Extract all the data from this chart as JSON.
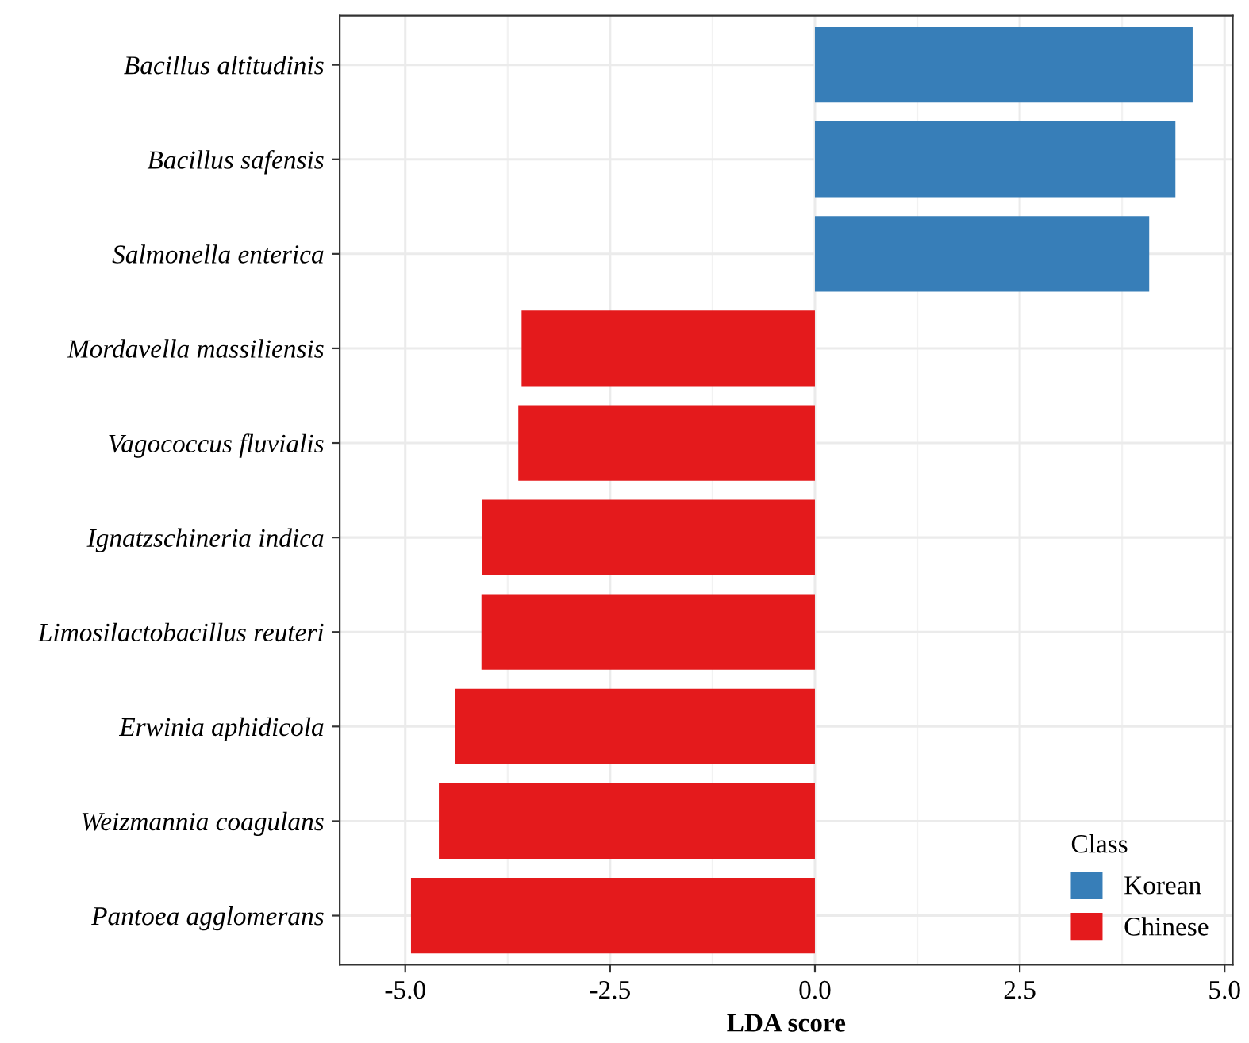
{
  "chart_data": {
    "type": "bar",
    "orientation": "horizontal",
    "xlabel": "LDA score",
    "legend_title": "Class",
    "categories": [
      "Bacillus altitudinis",
      "Bacillus safensis",
      "Salmonella enterica",
      "Mordavella massiliensis",
      "Vagococcus fluvialis",
      "Ignatzschineria indica",
      "Limosilactobacillus reuteri",
      "Erwinia aphidicola",
      "Weizmannia coagulans",
      "Pantoea agglomerans"
    ],
    "series": [
      {
        "name": "Korean",
        "color": "#377eb8",
        "values": [
          4.61,
          4.4,
          4.08,
          null,
          null,
          null,
          null,
          null,
          null,
          null
        ]
      },
      {
        "name": "Chinese",
        "color": "#e41a1c",
        "values": [
          null,
          null,
          null,
          -3.58,
          -3.62,
          -4.06,
          -4.07,
          -4.39,
          -4.59,
          -4.93
        ]
      }
    ],
    "xlim": [
      -5.8,
      5.1
    ],
    "xticks": [
      {
        "value": -5,
        "label": "-5.0"
      },
      {
        "value": -2.5,
        "label": "-2.5"
      },
      {
        "value": 0,
        "label": "0.0"
      },
      {
        "value": 2.5,
        "label": "2.5"
      },
      {
        "value": 5,
        "label": "5.0"
      }
    ],
    "grid": true,
    "legend": "bottom right"
  }
}
